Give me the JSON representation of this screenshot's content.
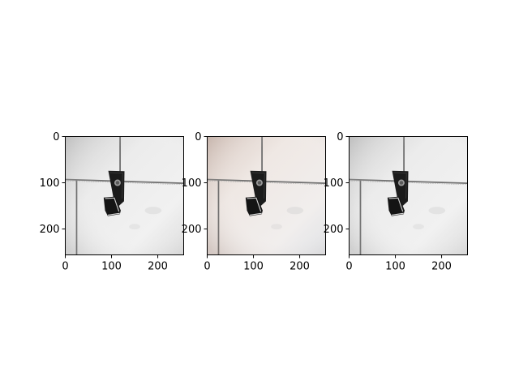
{
  "figure": {
    "panels": [
      {
        "id": "panel-1",
        "tone": "neutral-gray",
        "x_ticks": [
          "0",
          "100",
          "200"
        ],
        "y_ticks": [
          "0",
          "100",
          "200"
        ],
        "x_values": [
          0,
          100,
          200
        ],
        "y_values": [
          0,
          100,
          200
        ],
        "extent": [
          256,
          256
        ]
      },
      {
        "id": "panel-2",
        "tone": "warm-tinted",
        "x_ticks": [
          "0",
          "100",
          "200"
        ],
        "y_ticks": [
          "0",
          "100",
          "200"
        ],
        "x_values": [
          0,
          100,
          200
        ],
        "y_values": [
          0,
          100,
          200
        ],
        "extent": [
          256,
          256
        ]
      },
      {
        "id": "panel-3",
        "tone": "neutral-gray",
        "x_ticks": [
          "0",
          "100",
          "200"
        ],
        "y_ticks": [
          "0",
          "100",
          "200"
        ],
        "x_values": [
          0,
          100,
          200
        ],
        "y_values": [
          0,
          100,
          200
        ],
        "extent": [
          256,
          256
        ]
      }
    ],
    "colors": {
      "tile_neutral": "#e6e6e6",
      "tile_warm": "#e9e3df",
      "grout": "#6e6e6e",
      "holder": "#1b1b1b"
    }
  }
}
